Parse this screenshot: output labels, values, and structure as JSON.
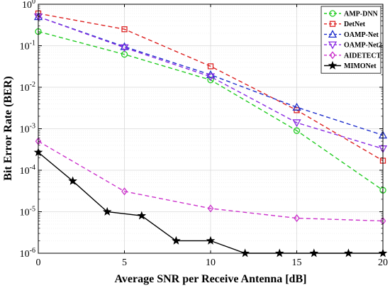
{
  "chart_data": {
    "type": "line",
    "title": "",
    "xlabel": "Average SNR per Receive Antenna [dB]",
    "ylabel": "Bit Error Rate (BER)",
    "xlim": [
      0,
      20
    ],
    "ylim": [
      1e-06,
      1
    ],
    "yscale": "log",
    "grid": true,
    "legend_position": "top-right",
    "x_ticks": [
      0,
      5,
      10,
      15,
      20
    ],
    "y_ticks": [
      {
        "value": 1,
        "base": "10",
        "exp": "0"
      },
      {
        "value": 0.1,
        "base": "10",
        "exp": "-1"
      },
      {
        "value": 0.01,
        "base": "10",
        "exp": "-2"
      },
      {
        "value": 0.001,
        "base": "10",
        "exp": "-3"
      },
      {
        "value": 0.0001,
        "base": "10",
        "exp": "-4"
      },
      {
        "value": 1e-05,
        "base": "10",
        "exp": "-5"
      },
      {
        "value": 1e-06,
        "base": "10",
        "exp": "-6"
      }
    ],
    "series": [
      {
        "name": "AMP-DNN",
        "color": "#22cc22",
        "marker": "circle",
        "dash": true,
        "x": [
          0,
          5,
          10,
          15,
          20
        ],
        "y": [
          0.22,
          0.062,
          0.015,
          0.0009,
          3.3e-05
        ]
      },
      {
        "name": "DetNet",
        "color": "#dd2222",
        "marker": "square",
        "dash": true,
        "x": [
          0,
          5,
          10,
          15,
          20
        ],
        "y": [
          0.6,
          0.25,
          0.032,
          0.0028,
          0.00017
        ]
      },
      {
        "name": "OAMP-Net",
        "color": "#1f2fcc",
        "marker": "triangle-up",
        "dash": true,
        "x": [
          0,
          5,
          10,
          15,
          20
        ],
        "y": [
          0.5,
          0.095,
          0.02,
          0.0033,
          0.0007
        ]
      },
      {
        "name": "OAMP-Net2",
        "color": "#8a2be2",
        "marker": "triangle-down",
        "dash": true,
        "x": [
          0,
          5,
          10,
          15,
          20
        ],
        "y": [
          0.5,
          0.09,
          0.018,
          0.0014,
          0.00033
        ]
      },
      {
        "name": "AIDETECT",
        "color": "#cc33cc",
        "marker": "diamond",
        "dash": true,
        "x": [
          0,
          5,
          10,
          15,
          20
        ],
        "y": [
          0.0005,
          3.1e-05,
          1.2e-05,
          7e-06,
          6e-06
        ]
      },
      {
        "name": "MIMONet",
        "color": "#000000",
        "marker": "star",
        "dash": false,
        "x": [
          0,
          2,
          4,
          6,
          8,
          10,
          12,
          14,
          16,
          18,
          20
        ],
        "y": [
          0.00027,
          5.5e-05,
          1e-05,
          8e-06,
          2e-06,
          2e-06,
          1e-06,
          1e-06,
          1e-06,
          1e-06,
          1e-06
        ]
      }
    ]
  }
}
